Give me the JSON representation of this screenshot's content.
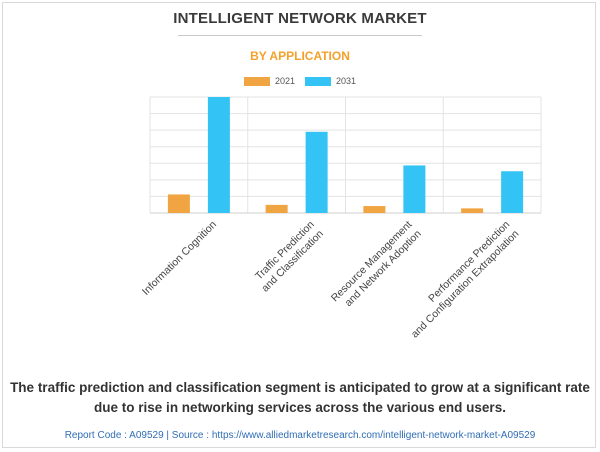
{
  "title": "INTELLIGENT NETWORK MARKET",
  "subtitle": "BY APPLICATION",
  "colors": {
    "subtitle": "#f3a12a",
    "series_2021": "#f0a542",
    "series_2031": "#33c3f5",
    "footer": "#2f6db5",
    "grid": "#e3e3e3"
  },
  "legend": [
    {
      "label": "2021"
    },
    {
      "label": "2031"
    }
  ],
  "caption": "The traffic prediction and classification segment is anticipated to grow at a significant rate due to rise in networking services across the various end users.",
  "footer": "Report Code : A09529  |  Source : https://www.alliedmarketresearch.com/intelligent-network-market-A09529",
  "chart_data": {
    "type": "bar",
    "title": "INTELLIGENT NETWORK MARKET",
    "subtitle": "BY APPLICATION",
    "categories": [
      [
        "Information Cognition"
      ],
      [
        "Traffic Prediction",
        "and Classification"
      ],
      [
        "Resource Management",
        "and Network Adoption"
      ],
      [
        "Performance Prediction",
        "and Configuration Extrapolation"
      ]
    ],
    "series": [
      {
        "name": "2021",
        "values": [
          16,
          7,
          6,
          4
        ]
      },
      {
        "name": "2031",
        "values": [
          100,
          70,
          41,
          36
        ]
      }
    ],
    "ylim": [
      0,
      100
    ],
    "y_axis_labels_visible": false,
    "grid": true,
    "legend_position": "top-center"
  }
}
